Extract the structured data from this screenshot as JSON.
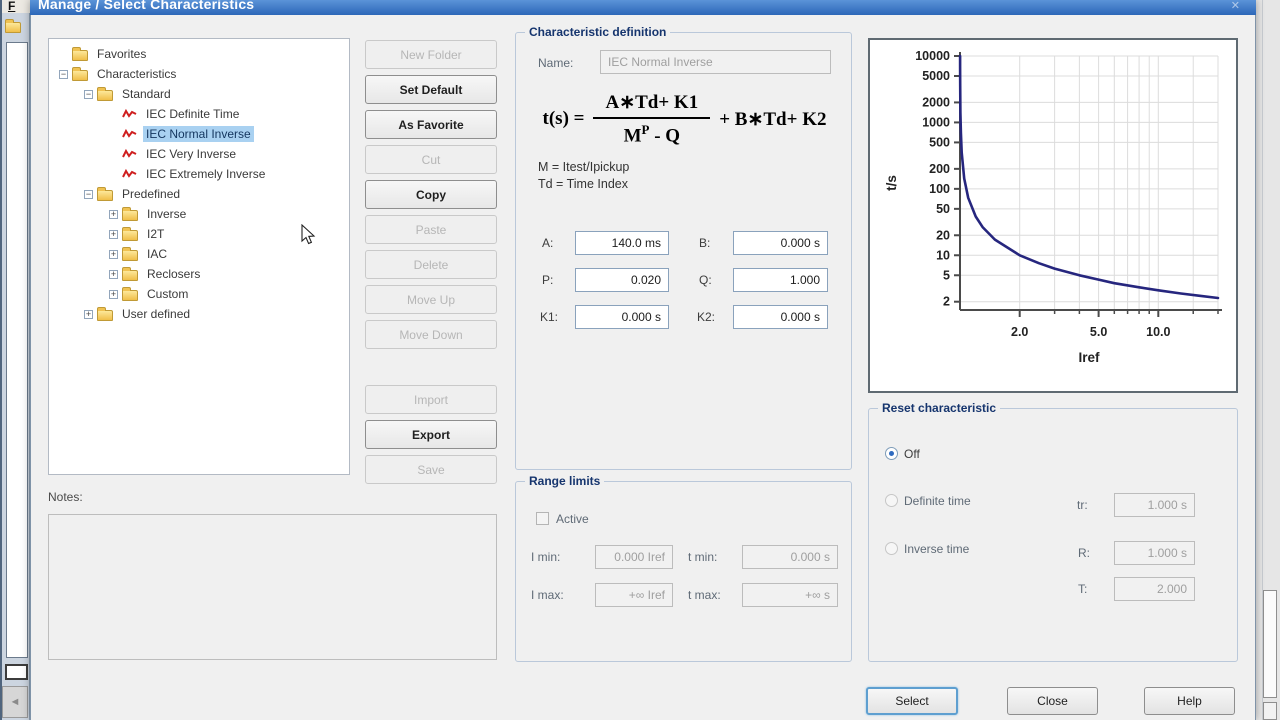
{
  "window": {
    "title": "Manage / Select Characteristics"
  },
  "icons": {
    "close": "✕",
    "plus": "+",
    "minus": "−",
    "scroll_left": "◄"
  },
  "background": {
    "menu_letter": "F"
  },
  "colors": {
    "titlebar": "#2c67b8",
    "selection": "#a9d1f1",
    "curve": "#26267e",
    "group_title": "#16356e"
  },
  "tree": {
    "items": [
      {
        "label": "Favorites",
        "level": 0,
        "icon": "folder",
        "expand": "none",
        "selected": false
      },
      {
        "label": "Characteristics",
        "level": 0,
        "icon": "folder",
        "expand": "minus",
        "selected": false
      },
      {
        "label": "Standard",
        "level": 1,
        "icon": "folder",
        "expand": "minus",
        "selected": false
      },
      {
        "label": "IEC Definite Time",
        "level": 2,
        "icon": "curve",
        "expand": "none",
        "selected": false
      },
      {
        "label": "IEC Normal Inverse",
        "level": 2,
        "icon": "curve",
        "expand": "none",
        "selected": true
      },
      {
        "label": "IEC Very Inverse",
        "level": 2,
        "icon": "curve",
        "expand": "none",
        "selected": false
      },
      {
        "label": "IEC Extremely Inverse",
        "level": 2,
        "icon": "curve",
        "expand": "none",
        "selected": false
      },
      {
        "label": "Predefined",
        "level": 1,
        "icon": "folder",
        "expand": "minus",
        "selected": false
      },
      {
        "label": "Inverse",
        "level": 2,
        "icon": "folder",
        "expand": "plus",
        "selected": false
      },
      {
        "label": "I2T",
        "level": 2,
        "icon": "folder",
        "expand": "plus",
        "selected": false
      },
      {
        "label": "IAC",
        "level": 2,
        "icon": "folder",
        "expand": "plus",
        "selected": false
      },
      {
        "label": "Reclosers",
        "level": 2,
        "icon": "folder",
        "expand": "plus",
        "selected": false
      },
      {
        "label": "Custom",
        "level": 2,
        "icon": "folder",
        "expand": "plus",
        "selected": false
      },
      {
        "label": "User defined",
        "level": 1,
        "icon": "folder",
        "expand": "plus",
        "selected": false
      }
    ]
  },
  "action_buttons": [
    {
      "label": "New Folder",
      "enabled": false,
      "gap_before": false
    },
    {
      "label": "Set Default",
      "enabled": true,
      "gap_before": false
    },
    {
      "label": "As Favorite",
      "enabled": true,
      "gap_before": false
    },
    {
      "label": "Cut",
      "enabled": false,
      "gap_before": false
    },
    {
      "label": "Copy",
      "enabled": true,
      "gap_before": false
    },
    {
      "label": "Paste",
      "enabled": false,
      "gap_before": false
    },
    {
      "label": "Delete",
      "enabled": false,
      "gap_before": false
    },
    {
      "label": "Move Up",
      "enabled": false,
      "gap_before": false
    },
    {
      "label": "Move Down",
      "enabled": false,
      "gap_before": false
    },
    {
      "label": "Import",
      "enabled": false,
      "gap_before": true
    },
    {
      "label": "Export",
      "enabled": true,
      "gap_before": false
    },
    {
      "label": "Save",
      "enabled": false,
      "gap_before": false
    }
  ],
  "notes": {
    "label": "Notes:",
    "value": ""
  },
  "definition": {
    "title": "Characteristic definition",
    "name_label": "Name:",
    "name_value": "IEC Normal Inverse",
    "formula": {
      "lhs": "t(s) =",
      "numerator": "A∗Td+ K1",
      "den_base": "M",
      "den_sup": "P",
      "den_rest": " - Q",
      "suffix": "+ B∗Td+ K2"
    },
    "legend": [
      "M = Itest/Ipickup",
      "Td = Time Index"
    ],
    "params": [
      {
        "label": "A:",
        "value": "140.0 ms"
      },
      {
        "label": "B:",
        "value": "0.000 s"
      },
      {
        "label": "P:",
        "value": "0.020"
      },
      {
        "label": "Q:",
        "value": "1.000"
      },
      {
        "label": "K1:",
        "value": "0.000 s"
      },
      {
        "label": "K2:",
        "value": "0.000 s"
      }
    ]
  },
  "range_limits": {
    "title": "Range limits",
    "active_label": "Active",
    "active_checked": false,
    "fields": [
      {
        "label": "I min:",
        "value": "0.000 Iref"
      },
      {
        "label": "t min:",
        "value": "0.000 s"
      },
      {
        "label": "I max:",
        "value": "+∞ Iref"
      },
      {
        "label": "t max:",
        "value": "+∞ s"
      }
    ]
  },
  "chart_data": {
    "type": "line",
    "title": "",
    "xlabel": "Iref",
    "ylabel": "t/s",
    "x_scale": "log",
    "y_scale": "log",
    "xlim": [
      1.0,
      20
    ],
    "ylim": [
      1.5,
      10000
    ],
    "x_ticks": [
      2,
      5,
      10
    ],
    "x_tick_labels": [
      "2.0",
      "5.0",
      "10.0"
    ],
    "x_minor_ticks": [
      3,
      4,
      6,
      7,
      8,
      9,
      15,
      20
    ],
    "y_ticks": [
      2,
      5,
      10,
      20,
      50,
      100,
      200,
      500,
      1000,
      2000,
      5000,
      10000
    ],
    "grid": true,
    "legend_position": "none",
    "series": [
      {
        "name": "IEC Normal Inverse",
        "color": "#26267e",
        "points": [
          [
            1.0007,
            10000
          ],
          [
            1.001,
            7000
          ],
          [
            1.002,
            3500
          ],
          [
            1.005,
            1400
          ],
          [
            1.01,
            703
          ],
          [
            1.02,
            353
          ],
          [
            1.05,
            143
          ],
          [
            1.1,
            73.4
          ],
          [
            1.2,
            38.3
          ],
          [
            1.3,
            26.6
          ],
          [
            1.5,
            17.2
          ],
          [
            2,
            10.0
          ],
          [
            2.5,
            7.6
          ],
          [
            3,
            6.3
          ],
          [
            4,
            5.0
          ],
          [
            5,
            4.3
          ],
          [
            6,
            3.8
          ],
          [
            8,
            3.3
          ],
          [
            10,
            2.97
          ],
          [
            13,
            2.66
          ],
          [
            16,
            2.46
          ],
          [
            20,
            2.27
          ]
        ]
      }
    ]
  },
  "reset": {
    "title": "Reset characteristic",
    "options": [
      {
        "label": "Off",
        "selected": true,
        "enabled": true
      },
      {
        "label": "Definite time",
        "selected": false,
        "enabled": false
      },
      {
        "label": "Inverse time",
        "selected": false,
        "enabled": false
      }
    ],
    "fields": [
      {
        "label": "tr:",
        "value": "1.000 s"
      },
      {
        "label": "R:",
        "value": "1.000 s"
      },
      {
        "label": "T:",
        "value": "2.000"
      }
    ]
  },
  "footer_buttons": [
    {
      "label": "Select",
      "default": true
    },
    {
      "label": "Close",
      "default": false
    },
    {
      "label": "Help",
      "default": false
    }
  ]
}
